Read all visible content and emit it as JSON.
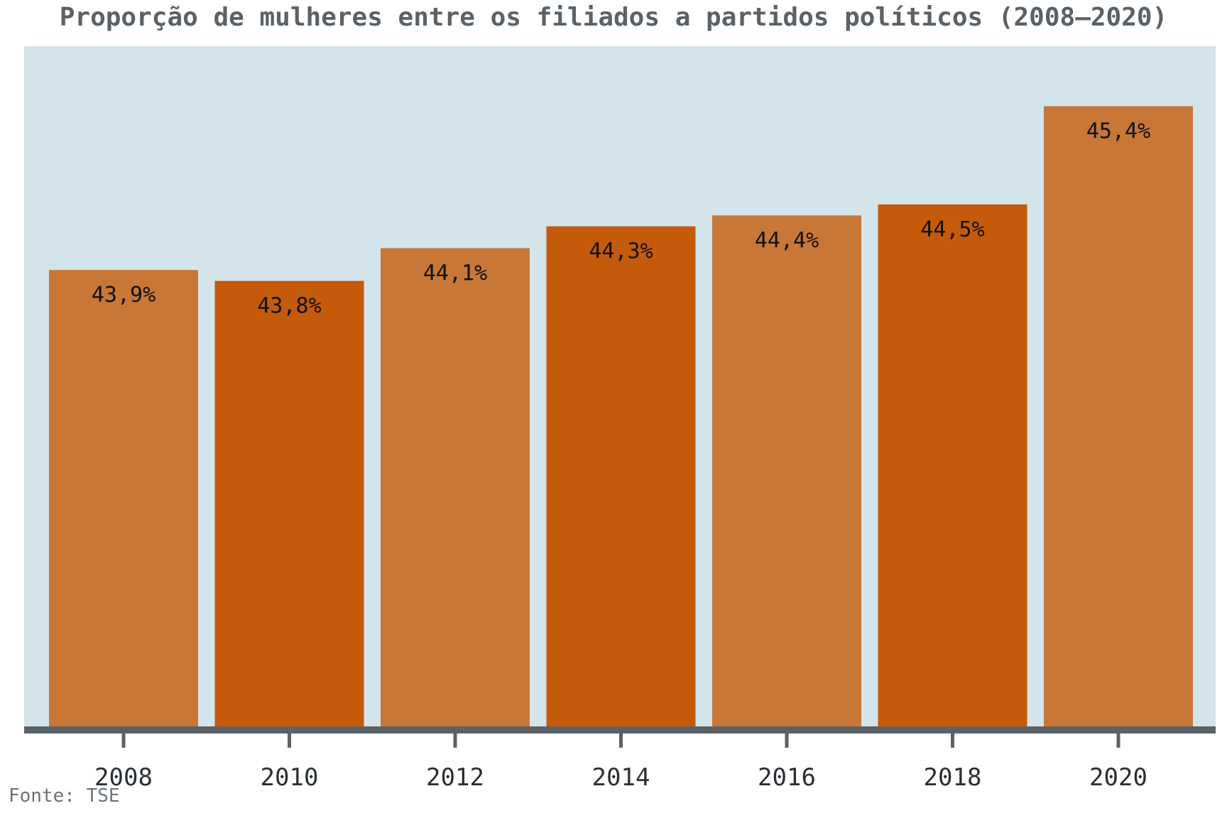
{
  "chart_data": {
    "type": "bar",
    "title": "Proporção de mulheres entre os filiados a partidos políticos (2008–2020)",
    "categories": [
      "2008",
      "2010",
      "2012",
      "2014",
      "2016",
      "2018",
      "2020"
    ],
    "values": [
      43.9,
      43.8,
      44.1,
      44.3,
      44.4,
      44.5,
      45.4
    ],
    "value_labels": [
      "43,9%",
      "43,8%",
      "44,1%",
      "44,3%",
      "44,4%",
      "44,5%",
      "45,4%"
    ],
    "xlabel": "",
    "ylabel": "",
    "ylim": [
      39.7,
      45.95
    ],
    "grid": false,
    "legend": "none",
    "source": "Fonte: TSE",
    "colors": {
      "background": "#d4e4eb",
      "bar_light": "#c87737",
      "bar_dark": "#c55a0b",
      "axis": "#5a6268",
      "title": "#5a6268"
    }
  }
}
